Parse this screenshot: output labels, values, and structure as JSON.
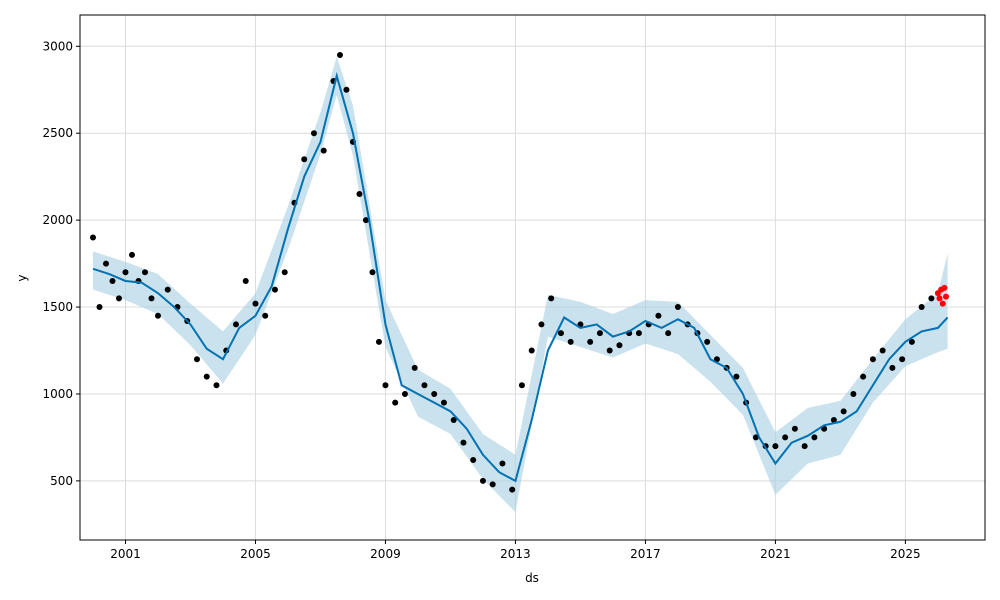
{
  "chart_data": {
    "type": "scatter",
    "title": "",
    "xlabel": "ds",
    "ylabel": "y",
    "xlim": [
      1999.6,
      2027.45
    ],
    "ylim": [
      160,
      3180
    ],
    "grid": true,
    "x_ticks": [
      {
        "value": 2001,
        "label": "2001"
      },
      {
        "value": 2005,
        "label": "2005"
      },
      {
        "value": 2009,
        "label": "2009"
      },
      {
        "value": 2013,
        "label": "2013"
      },
      {
        "value": 2017,
        "label": "2017"
      },
      {
        "value": 2021,
        "label": "2021"
      },
      {
        "value": 2025,
        "label": "2025"
      }
    ],
    "y_ticks": [
      {
        "value": 500,
        "label": "500"
      },
      {
        "value": 1000,
        "label": "1000"
      },
      {
        "value": 1500,
        "label": "1500"
      },
      {
        "value": 2000,
        "label": "2000"
      },
      {
        "value": 2500,
        "label": "2500"
      },
      {
        "value": 3000,
        "label": "3000"
      }
    ],
    "colors": {
      "observed": "#000000",
      "forecast_line": "#0072b2",
      "uncertainty_band": "#a6cee3",
      "highlight": "#ff0000"
    },
    "series": [
      {
        "kind": "observed",
        "x": [
          2000.0,
          2000.2,
          2000.4,
          2000.6,
          2000.8,
          2001.0,
          2001.2,
          2001.4,
          2001.6,
          2001.8,
          2002.0,
          2002.3,
          2002.6,
          2002.9,
          2003.2,
          2003.5,
          2003.8,
          2004.1,
          2004.4,
          2004.7,
          2005.0,
          2005.3,
          2005.6,
          2005.9,
          2006.2,
          2006.5,
          2006.8,
          2007.1,
          2007.4,
          2007.6,
          2007.8,
          2008.0,
          2008.2,
          2008.4,
          2008.6,
          2008.8,
          2009.0,
          2009.3,
          2009.6,
          2009.9,
          2010.2,
          2010.5,
          2010.8,
          2011.1,
          2011.4,
          2011.7,
          2012.0,
          2012.3,
          2012.6,
          2012.9,
          2013.2,
          2013.5,
          2013.8,
          2014.1,
          2014.4,
          2014.7,
          2015.0,
          2015.3,
          2015.6,
          2015.9,
          2016.2,
          2016.5,
          2016.8,
          2017.1,
          2017.4,
          2017.7,
          2018.0,
          2018.3,
          2018.6,
          2018.9,
          2019.2,
          2019.5,
          2019.8,
          2020.1,
          2020.4,
          2020.7,
          2021.0,
          2021.3,
          2021.6,
          2021.9,
          2022.2,
          2022.5,
          2022.8,
          2023.1,
          2023.4,
          2023.7,
          2024.0,
          2024.3,
          2024.6,
          2024.9,
          2025.2,
          2025.5,
          2025.8
        ],
        "y": [
          1900,
          1500,
          1750,
          1650,
          1550,
          1700,
          1800,
          1650,
          1700,
          1550,
          1450,
          1600,
          1500,
          1420,
          1200,
          1100,
          1050,
          1250,
          1400,
          1650,
          1520,
          1450,
          1600,
          1700,
          2100,
          2350,
          2500,
          2400,
          2800,
          2950,
          2750,
          2450,
          2150,
          2000,
          1700,
          1300,
          1050,
          950,
          1000,
          1150,
          1050,
          1000,
          950,
          850,
          720,
          620,
          500,
          480,
          600,
          450,
          1050,
          1250,
          1400,
          1550,
          1350,
          1300,
          1400,
          1300,
          1350,
          1250,
          1280,
          1350,
          1350,
          1400,
          1450,
          1350,
          1500,
          1400,
          1350,
          1300,
          1200,
          1150,
          1100,
          950,
          750,
          700,
          700,
          750,
          800,
          700,
          750,
          800,
          850,
          900,
          1000,
          1100,
          1200,
          1250,
          1150,
          1200,
          1300,
          1500,
          1550
        ]
      },
      {
        "kind": "forecast",
        "x": [
          2000.0,
          2000.5,
          2001.0,
          2001.5,
          2002.0,
          2002.5,
          2003.0,
          2003.5,
          2004.0,
          2004.5,
          2005.0,
          2005.5,
          2006.0,
          2006.5,
          2007.0,
          2007.5,
          2008.0,
          2008.5,
          2009.0,
          2009.5,
          2010.0,
          2010.5,
          2011.0,
          2011.5,
          2012.0,
          2012.5,
          2013.0,
          2013.5,
          2014.0,
          2014.5,
          2015.0,
          2015.5,
          2016.0,
          2016.5,
          2017.0,
          2017.5,
          2018.0,
          2018.5,
          2019.0,
          2019.5,
          2020.0,
          2020.5,
          2021.0,
          2021.5,
          2022.0,
          2022.5,
          2023.0,
          2023.5,
          2024.0,
          2024.5,
          2025.0,
          2025.5,
          2026.0,
          2026.3
        ],
        "y": [
          1720,
          1690,
          1650,
          1640,
          1580,
          1500,
          1400,
          1260,
          1200,
          1380,
          1450,
          1620,
          1950,
          2250,
          2450,
          2830,
          2500,
          2000,
          1400,
          1050,
          1000,
          950,
          900,
          800,
          650,
          550,
          500,
          850,
          1250,
          1440,
          1380,
          1400,
          1330,
          1360,
          1420,
          1380,
          1430,
          1380,
          1200,
          1150,
          1000,
          750,
          600,
          720,
          760,
          820,
          840,
          900,
          1050,
          1200,
          1300,
          1360,
          1380,
          1440
        ]
      },
      {
        "kind": "uncertainty_upper",
        "x": [
          2000.0,
          2001.0,
          2002.0,
          2003.0,
          2004.0,
          2005.0,
          2006.0,
          2007.0,
          2007.5,
          2008.0,
          2009.0,
          2010.0,
          2011.0,
          2012.0,
          2013.0,
          2014.0,
          2015.0,
          2016.0,
          2017.0,
          2018.0,
          2019.0,
          2020.0,
          2021.0,
          2022.0,
          2023.0,
          2024.0,
          2025.0,
          2026.0,
          2026.3
        ],
        "y": [
          1820,
          1760,
          1690,
          1520,
          1360,
          1580,
          2080,
          2620,
          2940,
          2660,
          1540,
          1140,
          1030,
          770,
          650,
          1570,
          1530,
          1460,
          1540,
          1530,
          1340,
          1150,
          780,
          920,
          960,
          1200,
          1430,
          1580,
          1810
        ]
      },
      {
        "kind": "uncertainty_lower",
        "x": [
          2000.0,
          2001.0,
          2002.0,
          2003.0,
          2004.0,
          2005.0,
          2006.0,
          2007.0,
          2007.5,
          2008.0,
          2009.0,
          2010.0,
          2011.0,
          2012.0,
          2013.0,
          2014.0,
          2015.0,
          2016.0,
          2017.0,
          2018.0,
          2019.0,
          2020.0,
          2021.0,
          2022.0,
          2023.0,
          2024.0,
          2025.0,
          2026.0,
          2026.3
        ],
        "y": [
          1600,
          1540,
          1460,
          1280,
          1060,
          1340,
          1830,
          2380,
          2720,
          2370,
          1270,
          870,
          770,
          510,
          320,
          1330,
          1270,
          1210,
          1290,
          1230,
          1070,
          880,
          420,
          600,
          650,
          950,
          1160,
          1240,
          1260
        ]
      },
      {
        "kind": "highlight",
        "x": [
          2026.0,
          2026.05,
          2026.1,
          2026.15,
          2026.2,
          2026.25
        ],
        "y": [
          1580,
          1550,
          1600,
          1520,
          1610,
          1560
        ]
      }
    ]
  }
}
